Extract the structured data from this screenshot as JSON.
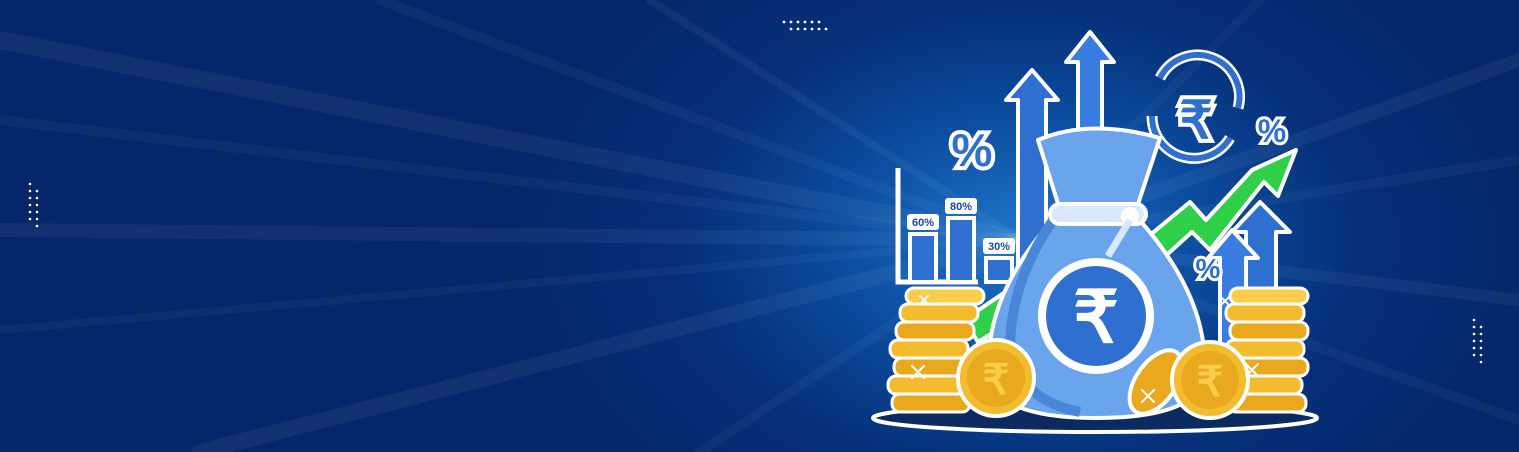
{
  "banner": {
    "background_colors": {
      "deep": "#05266a",
      "mid": "#0b4c9e",
      "glow": "#1f76c9"
    },
    "currency_symbol": "₹",
    "percent_symbol": "%",
    "bars": [
      {
        "label": "60%",
        "value": 60
      },
      {
        "label": "80%",
        "value": 80
      },
      {
        "label": "30%",
        "value": 30
      }
    ],
    "icons": [
      "money-bag-icon",
      "rupee-coin-icon",
      "growth-arrow-icon",
      "percent-icon",
      "currency-exchange-icon"
    ]
  }
}
